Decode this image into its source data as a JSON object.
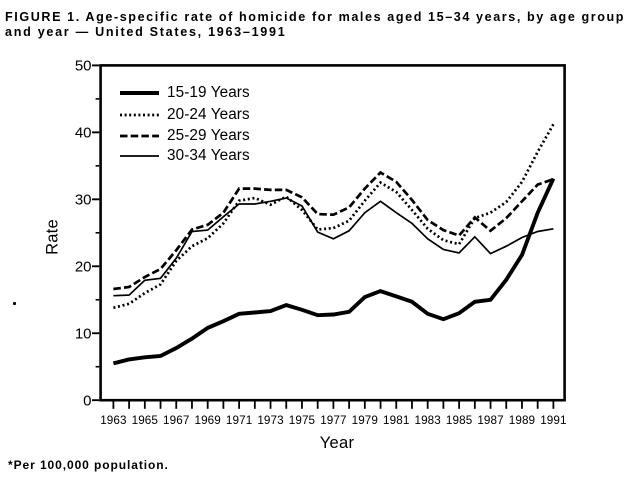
{
  "title": {
    "line1": "FIGURE 1. Age-specific rate of homicide for males aged 15–34 years, by age group",
    "line2": "and year — United States, 1963–1991"
  },
  "footnote": "*Per 100,000 population.",
  "colors": {
    "ink": "#000000",
    "background": "#ffffff"
  },
  "chart_data": {
    "type": "line",
    "title": "FIGURE 1. Age-specific rate of homicide for males aged 15–34 years, by age group and year — United States, 1963–1991",
    "xlabel": "Year",
    "ylabel": "Rate",
    "xlim": [
      1963,
      1991
    ],
    "ylim": [
      0,
      50
    ],
    "grid": false,
    "legend_position": "upper-left-inside",
    "x": [
      1963,
      1964,
      1965,
      1966,
      1967,
      1968,
      1969,
      1970,
      1971,
      1972,
      1973,
      1974,
      1975,
      1976,
      1977,
      1978,
      1979,
      1980,
      1981,
      1982,
      1983,
      1984,
      1985,
      1986,
      1987,
      1988,
      1989,
      1990,
      1991
    ],
    "x_tick_years": [
      1963,
      1964,
      1965,
      1966,
      1967,
      1968,
      1969,
      1970,
      1971,
      1972,
      1973,
      1974,
      1975,
      1976,
      1977,
      1978,
      1979,
      1980,
      1981,
      1982,
      1983,
      1984,
      1985,
      1986,
      1987,
      1988,
      1989,
      1990,
      1991
    ],
    "x_tick_labels": [
      "1963",
      "1965",
      "1967",
      "1969",
      "1971",
      "1973",
      "1975",
      "1977",
      "1979",
      "1981",
      "1983",
      "1985",
      "1987",
      "1989",
      "1991"
    ],
    "y_major_ticks": [
      0,
      10,
      20,
      30,
      40,
      50
    ],
    "y_minor_ticks": [
      5,
      15,
      25,
      35,
      45
    ],
    "series": [
      {
        "name": "15-19 Years",
        "style": "solid-thick",
        "values": [
          5.5,
          6.1,
          6.4,
          6.6,
          7.8,
          9.2,
          10.8,
          11.8,
          12.9,
          13.1,
          13.3,
          14.2,
          13.5,
          12.7,
          12.8,
          13.2,
          15.4,
          16.3,
          15.5,
          14.7,
          12.9,
          12.1,
          13.0,
          14.7,
          15.0,
          18.0,
          21.7,
          28.0,
          33.1
        ]
      },
      {
        "name": "20-24 Years",
        "style": "dotted",
        "values": [
          13.8,
          14.4,
          16.0,
          17.3,
          20.8,
          23.0,
          24.2,
          26.4,
          29.8,
          30.2,
          29.2,
          30.4,
          28.4,
          25.5,
          25.7,
          26.8,
          29.8,
          32.5,
          31.1,
          28.4,
          25.6,
          23.9,
          23.3,
          27.2,
          28.0,
          29.6,
          32.6,
          37.1,
          41.2
        ]
      },
      {
        "name": "25-29 Years",
        "style": "dashed",
        "values": [
          16.6,
          16.9,
          18.4,
          19.6,
          22.4,
          25.5,
          26.2,
          28.0,
          31.6,
          31.6,
          31.4,
          31.4,
          30.3,
          27.8,
          27.7,
          28.8,
          31.6,
          34.0,
          32.6,
          29.9,
          26.9,
          25.4,
          24.6,
          27.3,
          25.3,
          27.2,
          29.7,
          32.2,
          33.0
        ]
      },
      {
        "name": "30-34 Years",
        "style": "solid-thin",
        "values": [
          15.6,
          15.7,
          17.9,
          18.2,
          21.2,
          25.2,
          25.4,
          27.4,
          29.3,
          29.3,
          29.7,
          30.2,
          29.0,
          25.1,
          24.1,
          25.3,
          28.0,
          29.7,
          28.0,
          26.4,
          24.1,
          22.5,
          22.0,
          24.4,
          21.9,
          23.0,
          24.3,
          25.2,
          25.6
        ]
      }
    ]
  }
}
